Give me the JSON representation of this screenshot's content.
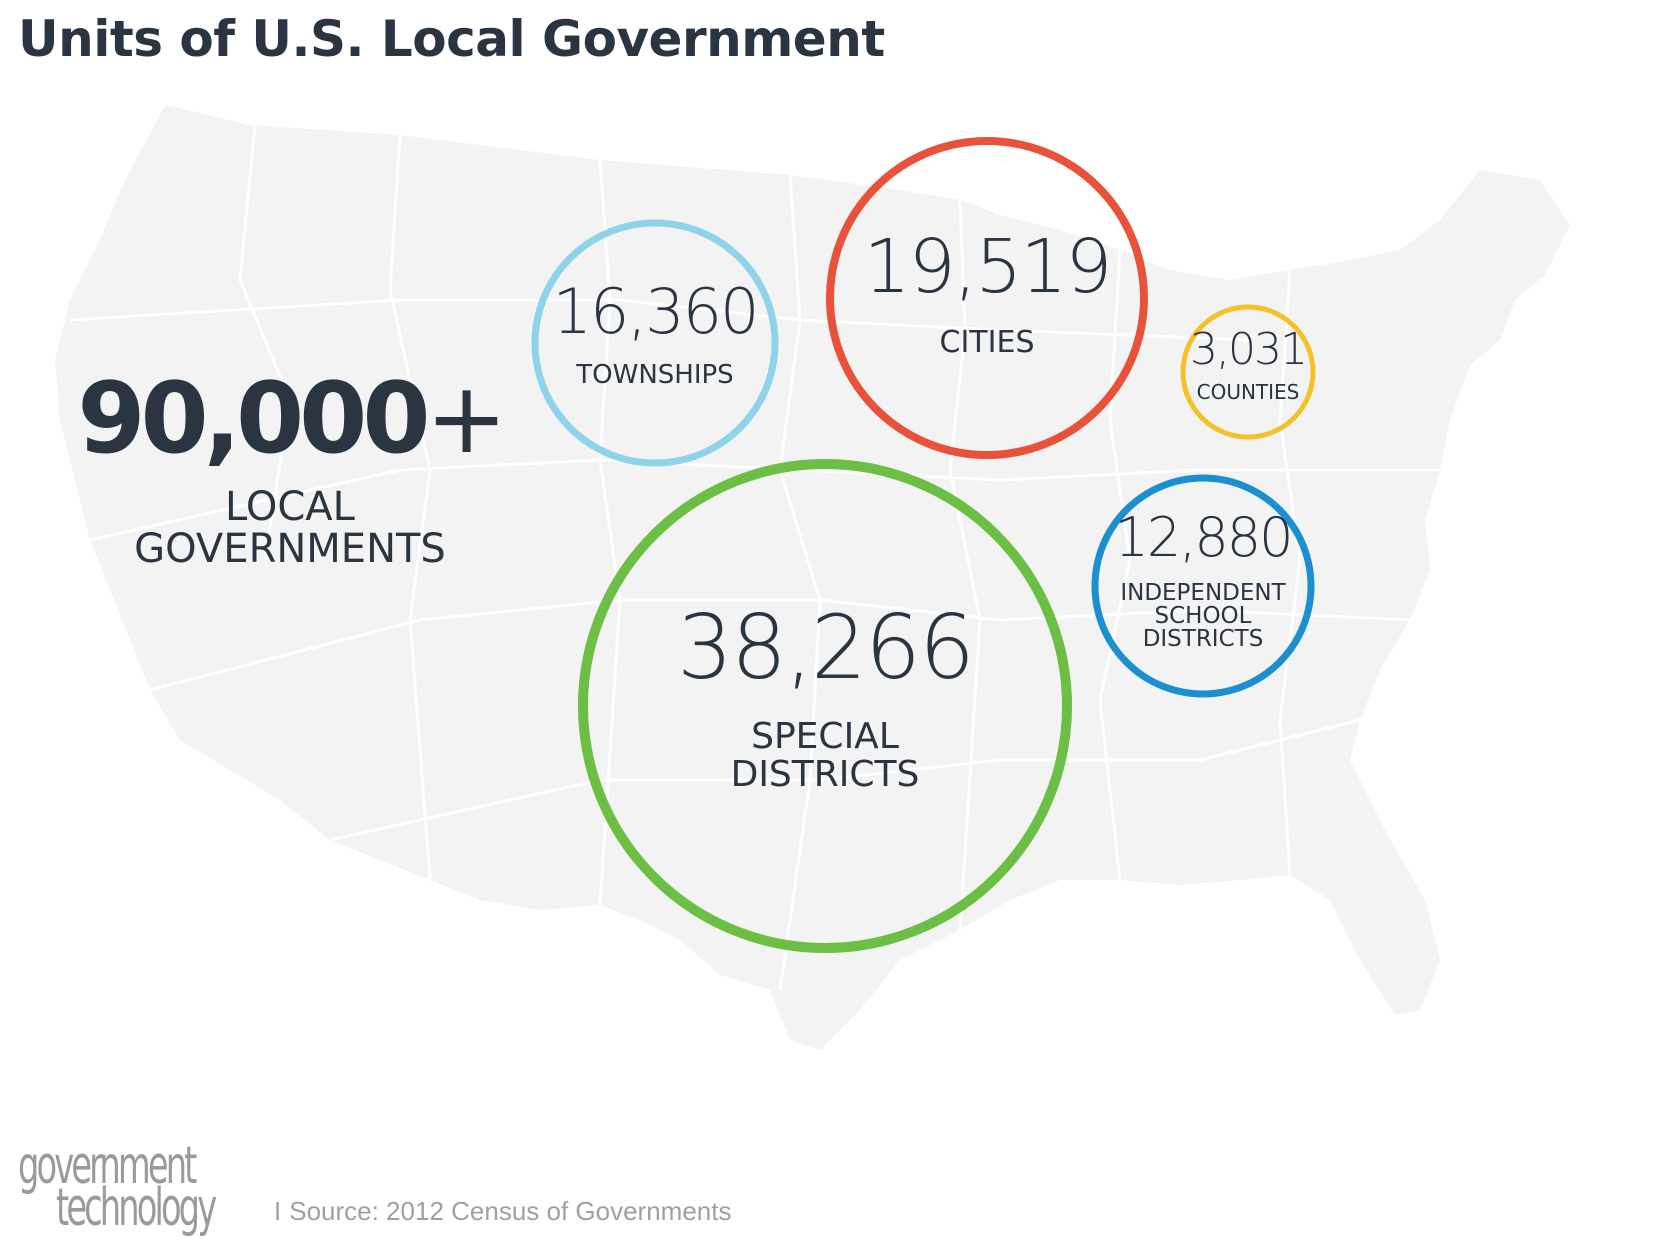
{
  "title": "Units of U.S. Local Government",
  "total": {
    "value": "90,000",
    "suffix": "+",
    "label_line1": "LOCAL",
    "label_line2": "GOVERNMENTS"
  },
  "chart_data": {
    "type": "bubble",
    "title": "Units of U.S. Local Government",
    "total": "90,000+",
    "series": [
      {
        "name": "TOWNSHIPS",
        "label": "16,360",
        "value": 16360,
        "color": "#8fd3ea",
        "label_lines": [
          "TOWNSHIPS"
        ]
      },
      {
        "name": "CITIES",
        "label": "19,519",
        "value": 19519,
        "color": "#e8523a",
        "label_lines": [
          "CITIES"
        ]
      },
      {
        "name": "COUNTIES",
        "label": "3,031",
        "value": 3031,
        "color": "#f3c12c",
        "label_lines": [
          "COUNTIES"
        ]
      },
      {
        "name": "SPECIAL DISTRICTS",
        "label": "38,266",
        "value": 38266,
        "color": "#6cbf44",
        "label_lines": [
          "SPECIAL",
          "DISTRICTS"
        ]
      },
      {
        "name": "INDEPENDENT SCHOOL DISTRICTS",
        "label": "12,880",
        "value": 12880,
        "color": "#1b8fd0",
        "label_lines": [
          "INDEPENDENT",
          "SCHOOL",
          "DISTRICTS"
        ]
      }
    ]
  },
  "footer": {
    "logo_line1": "government",
    "logo_line2": "technology",
    "source_sep": "I",
    "source_text": "Source:  2012 Census of Governments"
  },
  "colors": {
    "text": "#2b3441",
    "map_fill": "#f3f3f3",
    "map_line": "#ffffff"
  }
}
